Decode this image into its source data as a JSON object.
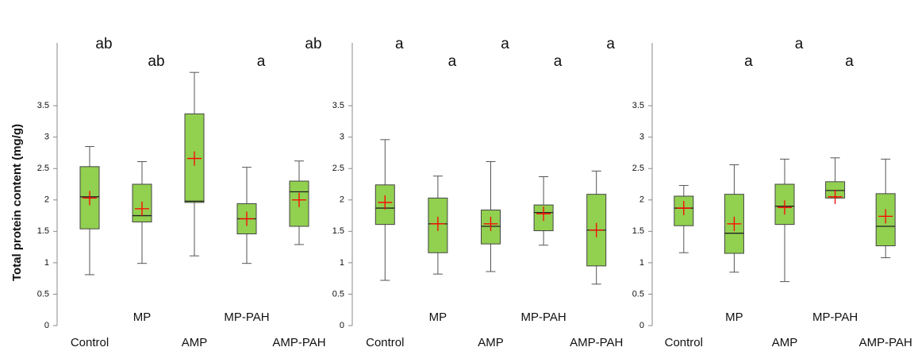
{
  "chart_data": [
    {
      "type": "box",
      "ylabel": "Total protein content (mg/g)",
      "categories": [
        "Control",
        "MP",
        "AMP",
        "MP-PAH",
        "AMP-PAH"
      ],
      "whisker_low": [
        0.81,
        0.99,
        1.11,
        0.99,
        1.29
      ],
      "q1": [
        1.54,
        1.65,
        1.96,
        1.46,
        1.58
      ],
      "median": [
        2.05,
        1.75,
        1.98,
        1.7,
        2.13
      ],
      "q3": [
        2.53,
        2.25,
        3.37,
        1.94,
        2.3
      ],
      "whisker_high": [
        2.85,
        2.61,
        4.03,
        2.52,
        2.62
      ],
      "mean": [
        2.03,
        1.86,
        2.66,
        1.7,
        2.0
      ],
      "letters": [
        "ab",
        "ab",
        null,
        "a",
        "ab"
      ],
      "color": "#92d050",
      "mean_color": "#ff0000",
      "ylim": [
        0,
        4.5
      ],
      "yticks": [
        0,
        0.5,
        1,
        1.5,
        2,
        2.5,
        3,
        3.5
      ]
    },
    {
      "type": "box",
      "categories": [
        "Control",
        "MP",
        "AMP",
        "MP-PAH",
        "AMP-PAH"
      ],
      "whisker_low": [
        0.72,
        0.82,
        0.86,
        1.28,
        0.66
      ],
      "q1": [
        1.61,
        1.16,
        1.3,
        1.51,
        0.95
      ],
      "median": [
        1.87,
        1.62,
        1.58,
        1.8,
        1.52
      ],
      "q3": [
        2.24,
        2.03,
        1.84,
        1.92,
        2.09
      ],
      "whisker_high": [
        2.96,
        2.38,
        2.61,
        2.37,
        2.46
      ],
      "mean": [
        1.96,
        1.62,
        1.62,
        1.78,
        1.52
      ],
      "letters": [
        "a",
        "a",
        "a",
        "a",
        "a"
      ],
      "color": "#92d050",
      "mean_color": "#ff0000",
      "ylim": [
        0,
        4.5
      ],
      "yticks": [
        0,
        0.5,
        1,
        1.5,
        2,
        2.5,
        3,
        3.5
      ]
    },
    {
      "type": "box",
      "categories": [
        "Control",
        "MP",
        "AMP",
        "MP-PAH",
        "AMP-PAH"
      ],
      "whisker_low": [
        1.16,
        0.85,
        0.7,
        2.03,
        1.08
      ],
      "q1": [
        1.59,
        1.15,
        1.61,
        2.03,
        1.27
      ],
      "median": [
        1.87,
        1.47,
        1.9,
        2.15,
        1.58
      ],
      "q3": [
        2.06,
        2.09,
        2.25,
        2.29,
        2.1
      ],
      "whisker_high": [
        2.23,
        2.56,
        2.65,
        2.67,
        2.65
      ],
      "mean": [
        1.87,
        1.62,
        1.88,
        2.05,
        1.74
      ],
      "letters": [
        null,
        "a",
        "a",
        "a",
        null
      ],
      "color": "#92d050",
      "mean_color": "#ff0000",
      "ylim": [
        0,
        4.5
      ],
      "yticks": [
        0,
        0.5,
        1,
        1.5,
        2,
        2.5,
        3,
        3.5
      ]
    }
  ]
}
